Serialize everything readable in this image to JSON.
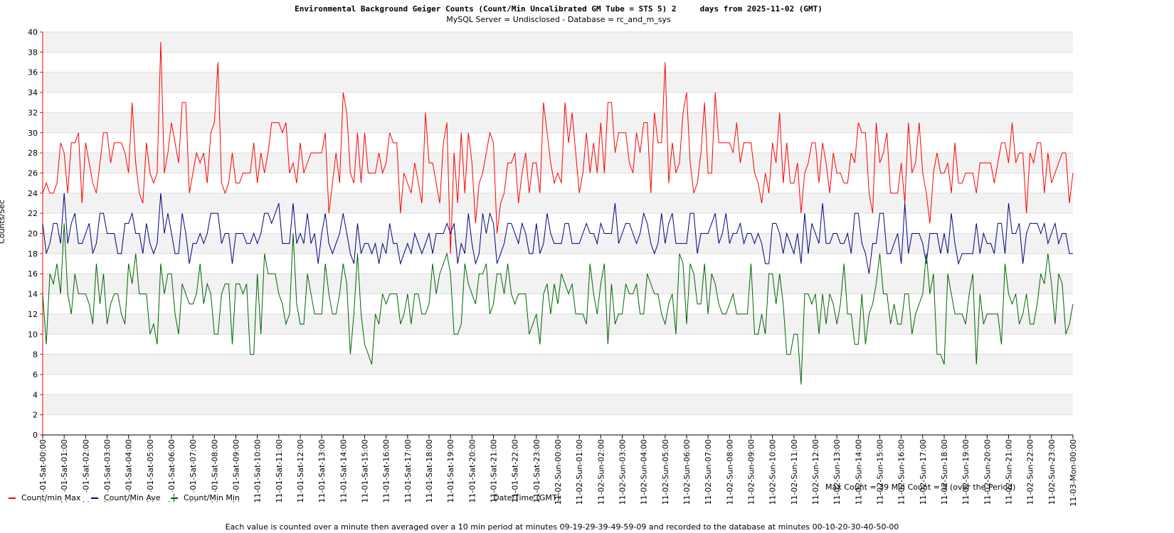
{
  "chart_data": {
    "type": "line",
    "title": "Environmental Background Geiger Counts (Count/Min Uncalibrated GM Tube = STS 5) 2     days from 2025-11-02 (GMT)",
    "subtitle": "MySQL Server = Undisclosed - Database = rc_and_m_sys",
    "y_label": "Counts/Sec",
    "x_label": "Date/Time (GMT)",
    "annotation": "Max Count = 39 Min Count = 5 (over the Period)",
    "footnote": "Each value is counted over a minute then averaged over a 10 min period at minutes 09-19-29-39-49-59-09 and recorded to the database at minutes 00-10-20-30-40-50-00",
    "ylim": [
      0,
      40
    ],
    "yticks": [
      0,
      2,
      4,
      6,
      8,
      10,
      12,
      14,
      16,
      18,
      20,
      22,
      24,
      26,
      28,
      30,
      32,
      34,
      36,
      38,
      40
    ],
    "grid": true,
    "xlim": [
      0,
      288
    ],
    "xticks": [
      {
        "value": 0,
        "label": "11-01-Sat-00:00"
      },
      {
        "value": 6,
        "label": "11-01-Sat-01:00"
      },
      {
        "value": 12,
        "label": "11-01-Sat-02:00"
      },
      {
        "value": 18,
        "label": "11-01-Sat-03:00"
      },
      {
        "value": 24,
        "label": "11-01-Sat-04:00"
      },
      {
        "value": 30,
        "label": "11-01-Sat-05:00"
      },
      {
        "value": 36,
        "label": "11-01-Sat-06:00"
      },
      {
        "value": 42,
        "label": "11-01-Sat-07:00"
      },
      {
        "value": 48,
        "label": "11-01-Sat-08:00"
      },
      {
        "value": 54,
        "label": "11-01-Sat-09:00"
      },
      {
        "value": 60,
        "label": "11-01-Sat-10:00"
      },
      {
        "value": 66,
        "label": "11-01-Sat-11:00"
      },
      {
        "value": 72,
        "label": "11-01-Sat-12:00"
      },
      {
        "value": 78,
        "label": "11-01-Sat-13:00"
      },
      {
        "value": 84,
        "label": "11-01-Sat-14:00"
      },
      {
        "value": 90,
        "label": "11-01-Sat-15:00"
      },
      {
        "value": 96,
        "label": "11-01-Sat-16:00"
      },
      {
        "value": 102,
        "label": "11-01-Sat-17:00"
      },
      {
        "value": 108,
        "label": "11-01-Sat-18:00"
      },
      {
        "value": 114,
        "label": "11-01-Sat-19:00"
      },
      {
        "value": 120,
        "label": "11-01-Sat-20:00"
      },
      {
        "value": 126,
        "label": "11-01-Sat-21:00"
      },
      {
        "value": 132,
        "label": "11-01-Sat-22:00"
      },
      {
        "value": 138,
        "label": "11-01-Sat-23:00"
      },
      {
        "value": 144,
        "label": "11-02-Sun-00:00"
      },
      {
        "value": 150,
        "label": "11-02-Sun-01:00"
      },
      {
        "value": 156,
        "label": "11-02-Sun-02:00"
      },
      {
        "value": 162,
        "label": "11-02-Sun-03:00"
      },
      {
        "value": 168,
        "label": "11-02-Sun-04:00"
      },
      {
        "value": 174,
        "label": "11-02-Sun-05:00"
      },
      {
        "value": 180,
        "label": "11-02-Sun-06:00"
      },
      {
        "value": 186,
        "label": "11-02-Sun-07:00"
      },
      {
        "value": 192,
        "label": "11-02-Sun-08:00"
      },
      {
        "value": 198,
        "label": "11-02-Sun-09:00"
      },
      {
        "value": 204,
        "label": "11-02-Sun-10:00"
      },
      {
        "value": 210,
        "label": "11-02-Sun-11:00"
      },
      {
        "value": 216,
        "label": "11-02-Sun-12:00"
      },
      {
        "value": 222,
        "label": "11-02-Sun-13:00"
      },
      {
        "value": 228,
        "label": "11-02-Sun-14:00"
      },
      {
        "value": 234,
        "label": "11-02-Sun-15:00"
      },
      {
        "value": 240,
        "label": "11-02-Sun-16:00"
      },
      {
        "value": 246,
        "label": "11-02-Sun-17:00"
      },
      {
        "value": 252,
        "label": "11-02-Sun-18:00"
      },
      {
        "value": 258,
        "label": "11-02-Sun-19:00"
      },
      {
        "value": 264,
        "label": "11-02-Sun-20:00"
      },
      {
        "value": 270,
        "label": "11-02-Sun-21:00"
      },
      {
        "value": 276,
        "label": "11-02-Sun-22:00"
      },
      {
        "value": 282,
        "label": "11-02-Sun-23:00"
      },
      {
        "value": 288,
        "label": "11-03-Mon-00:00"
      }
    ],
    "series": [
      {
        "name": "Count/min Max",
        "color": "#ff0000",
        "values": [
          24,
          25,
          24,
          24,
          25,
          29,
          28,
          24,
          29,
          29,
          30,
          23,
          29,
          27,
          25,
          24,
          27,
          30,
          30,
          27,
          29,
          29,
          29,
          28,
          26,
          33,
          27,
          24,
          23,
          29,
          26,
          25,
          26,
          39,
          26,
          28,
          31,
          29,
          27,
          33,
          33,
          24,
          26,
          28,
          27,
          28,
          25,
          30,
          31,
          37,
          25,
          24,
          25,
          28,
          25,
          25,
          26,
          26,
          26,
          29,
          25,
          28,
          26,
          28,
          31,
          31,
          31,
          30,
          31,
          26,
          27,
          25,
          29,
          26,
          27,
          28,
          28,
          28,
          28,
          30,
          22,
          25,
          28,
          25,
          34,
          32,
          26,
          25,
          30,
          25,
          30,
          26,
          26,
          26,
          28,
          26,
          27,
          30,
          29,
          29,
          22,
          26,
          25,
          24,
          27,
          25,
          23,
          32,
          27,
          27,
          25,
          23,
          29,
          31,
          18,
          28,
          23,
          30,
          24,
          30,
          27,
          21,
          25,
          26,
          28,
          30,
          29,
          20,
          23,
          24,
          27,
          27,
          28,
          23,
          26,
          28,
          24,
          27,
          27,
          24,
          33,
          30,
          27,
          25,
          26,
          25,
          33,
          29,
          32,
          28,
          24,
          26,
          30,
          26,
          29,
          26,
          31,
          26,
          33,
          33,
          28,
          30,
          30,
          30,
          27,
          26,
          30,
          28,
          31,
          31,
          24,
          32,
          29,
          29,
          37,
          25,
          29,
          26,
          27,
          32,
          34,
          27,
          24,
          25,
          28,
          33,
          26,
          26,
          34,
          29,
          29,
          29,
          29,
          28,
          31,
          27,
          29,
          29,
          29,
          26,
          25,
          23,
          26,
          24,
          29,
          27,
          32,
          25,
          29,
          25,
          25,
          27,
          22,
          26,
          27,
          29,
          29,
          25,
          29,
          27,
          24,
          28,
          26,
          26,
          25,
          25,
          28,
          27,
          31,
          30,
          30,
          24,
          22,
          31,
          27,
          28,
          30,
          24,
          24,
          24,
          27,
          23,
          31,
          26,
          27,
          31,
          26,
          24,
          21,
          26,
          28,
          26,
          26,
          27,
          24,
          29,
          25,
          25,
          26,
          26,
          26,
          24,
          27,
          27,
          27,
          27,
          25,
          27,
          29,
          29,
          27,
          31,
          27,
          28,
          28,
          22,
          28,
          27,
          29,
          29,
          24,
          28,
          25,
          26,
          27,
          28,
          28,
          23,
          26
        ]
      },
      {
        "name": "Count/Min Ave",
        "color": "#000080",
        "values": [
          21,
          18,
          19,
          21,
          21,
          19,
          24,
          19,
          21,
          22,
          19,
          19,
          20,
          21,
          18,
          19,
          22,
          22,
          20,
          20,
          20,
          18,
          18,
          21,
          21,
          22,
          20,
          20,
          18,
          21,
          19,
          18,
          19,
          24,
          20,
          22,
          20,
          18,
          18,
          22,
          20,
          17,
          19,
          19,
          20,
          19,
          20,
          22,
          22,
          22,
          19,
          20,
          20,
          17,
          20,
          20,
          20,
          19,
          19,
          20,
          19,
          20,
          22,
          22,
          21,
          22,
          23,
          19,
          19,
          19,
          23,
          19,
          20,
          19,
          22,
          19,
          20,
          17,
          20,
          22,
          19,
          18,
          19,
          20,
          22,
          20,
          18,
          17,
          21,
          18,
          19,
          19,
          18,
          19,
          17,
          19,
          18,
          21,
          19,
          19,
          17,
          18,
          19,
          18,
          20,
          19,
          18,
          19,
          20,
          18,
          20,
          20,
          20,
          21,
          20,
          21,
          17,
          19,
          18,
          22,
          19,
          17,
          18,
          22,
          20,
          22,
          21,
          17,
          18,
          19,
          21,
          21,
          20,
          19,
          21,
          20,
          18,
          18,
          21,
          18,
          19,
          22,
          20,
          19,
          19,
          19,
          21,
          21,
          19,
          19,
          19,
          20,
          21,
          20,
          20,
          19,
          21,
          20,
          20,
          20,
          23,
          19,
          20,
          21,
          21,
          20,
          19,
          20,
          22,
          21,
          19,
          18,
          19,
          22,
          19,
          21,
          22,
          19,
          19,
          19,
          19,
          22,
          22,
          18,
          20,
          20,
          20,
          21,
          22,
          19,
          20,
          22,
          19,
          20,
          20,
          21,
          19,
          20,
          20,
          19,
          20,
          19,
          17,
          17,
          21,
          21,
          20,
          18,
          20,
          19,
          18,
          20,
          17,
          22,
          18,
          21,
          20,
          19,
          23,
          19,
          19,
          20,
          20,
          19,
          19,
          20,
          18,
          22,
          22,
          19,
          18,
          16,
          19,
          19,
          22,
          22,
          18,
          18,
          19,
          20,
          17,
          23,
          18,
          20,
          20,
          20,
          19,
          17,
          20,
          20,
          20,
          18,
          20,
          18,
          22,
          19,
          17,
          18,
          18,
          18,
          18,
          21,
          18,
          20,
          19,
          19,
          18,
          21,
          21,
          18,
          23,
          20,
          20,
          21,
          17,
          20,
          21,
          21,
          21,
          20,
          21,
          19,
          20,
          21,
          19,
          20,
          20,
          18,
          18
        ]
      },
      {
        "name": "Count/Min Min",
        "color": "#006400",
        "values": [
          14,
          9,
          16,
          15,
          17,
          14,
          21,
          14,
          12,
          16,
          14,
          14,
          14,
          13,
          11,
          17,
          13,
          16,
          11,
          13,
          14,
          14,
          12,
          11,
          17,
          15,
          18,
          14,
          14,
          14,
          10,
          11,
          9,
          17,
          14,
          16,
          16,
          12,
          10,
          15,
          14,
          13,
          13,
          14,
          17,
          13,
          15,
          14,
          10,
          10,
          14,
          15,
          15,
          9,
          15,
          15,
          14,
          15,
          8,
          8,
          16,
          10,
          18,
          16,
          16,
          16,
          14,
          13,
          11,
          12,
          20,
          13,
          11,
          11,
          16,
          14,
          12,
          12,
          12,
          17,
          14,
          12,
          12,
          14,
          17,
          15,
          8,
          12,
          18,
          12,
          9,
          8,
          7,
          12,
          11,
          14,
          13,
          14,
          14,
          14,
          11,
          12,
          14,
          11,
          14,
          14,
          12,
          12,
          13,
          17,
          14,
          16,
          17,
          18,
          16,
          10,
          10,
          11,
          17,
          15,
          14,
          13,
          16,
          16,
          17,
          12,
          13,
          16,
          16,
          14,
          17,
          14,
          13,
          14,
          14,
          14,
          10,
          11,
          12,
          9,
          14,
          15,
          12,
          15,
          13,
          16,
          15,
          14,
          15,
          12,
          12,
          12,
          11,
          17,
          14,
          12,
          15,
          17,
          9,
          15,
          11,
          12,
          12,
          15,
          14,
          14,
          15,
          12,
          12,
          16,
          15,
          14,
          14,
          12,
          11,
          13,
          14,
          10,
          18,
          17,
          11,
          17,
          16,
          13,
          13,
          17,
          12,
          16,
          15,
          13,
          12,
          12,
          13,
          14,
          12,
          12,
          12,
          12,
          17,
          10,
          10,
          12,
          10,
          16,
          16,
          13,
          16,
          13,
          8,
          8,
          10,
          10,
          5,
          14,
          14,
          13,
          14,
          10,
          14,
          11,
          14,
          13,
          11,
          13,
          17,
          12,
          12,
          9,
          9,
          14,
          9,
          12,
          13,
          15,
          18,
          14,
          14,
          11,
          13,
          11,
          11,
          14,
          14,
          10,
          12,
          13,
          14,
          18,
          14,
          16,
          8,
          8,
          7,
          16,
          14,
          12,
          12,
          12,
          11,
          14,
          16,
          7,
          14,
          11,
          12,
          12,
          12,
          12,
          9,
          17,
          14,
          13,
          14,
          11,
          12,
          14,
          11,
          11,
          13,
          16,
          15,
          18,
          15,
          11,
          16,
          15,
          10,
          11,
          13
        ]
      }
    ]
  }
}
